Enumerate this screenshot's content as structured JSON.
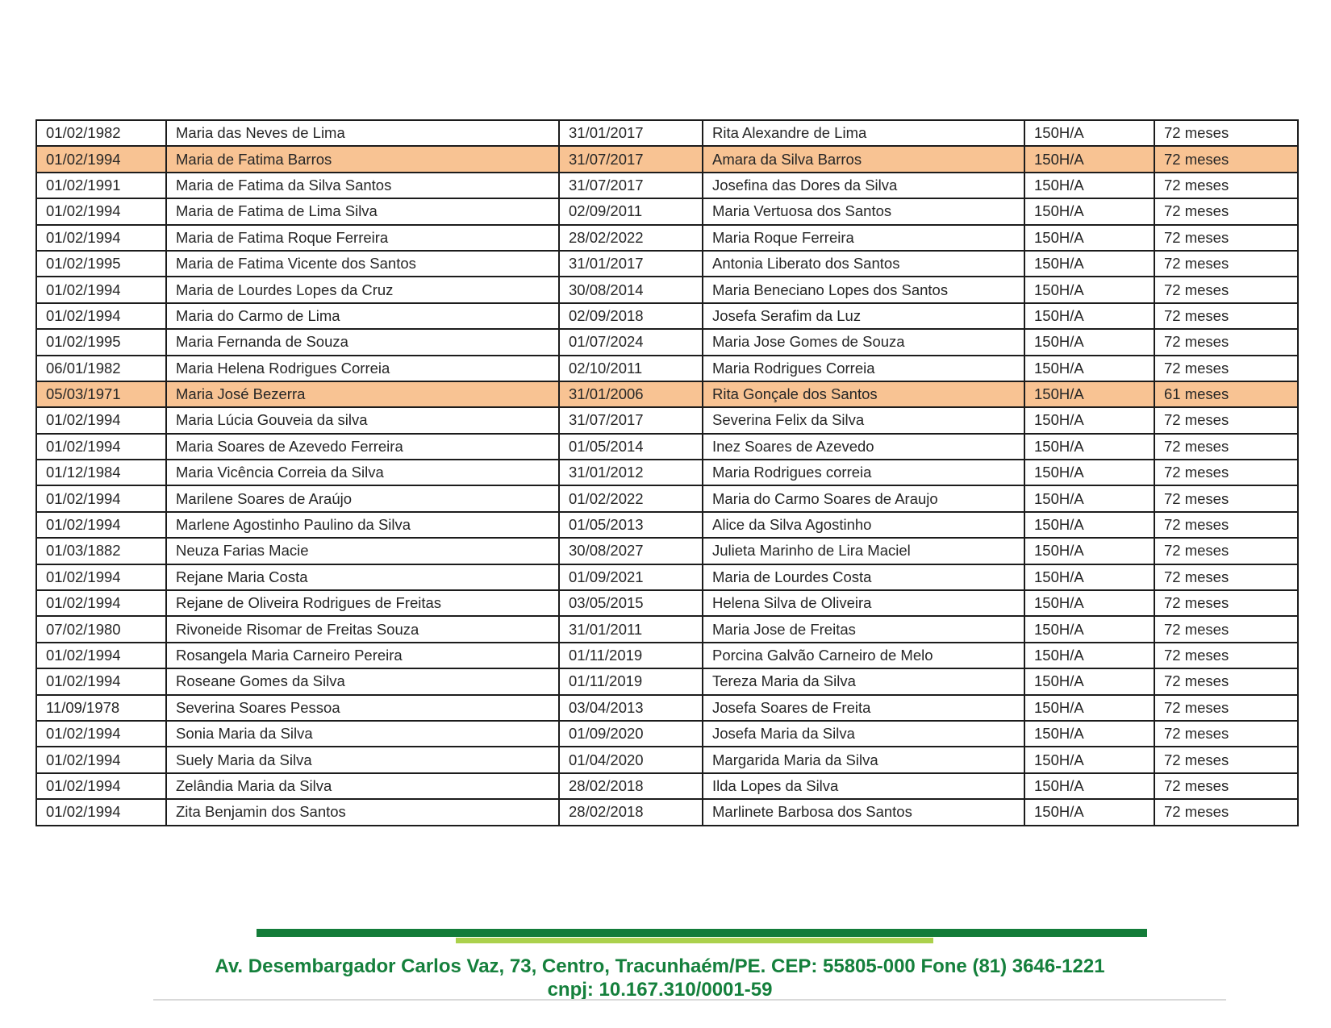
{
  "colors": {
    "highlight": "#f8c393",
    "table_border": "#1c1c1c",
    "table_text": "#262626",
    "footer_green": "#15803c",
    "bar_dark_green": "#137c39",
    "bar_light_green": "#abd14c",
    "divider_gray": "#d9d9d9"
  },
  "table": {
    "rows": [
      {
        "highlight": false,
        "cells": [
          "01/02/1982",
          "Maria das Neves de Lima",
          "31/01/2017",
          "Rita Alexandre de Lima",
          "150H/A",
          "72 meses"
        ]
      },
      {
        "highlight": true,
        "cells": [
          "01/02/1994",
          "Maria de Fatima Barros",
          "31/07/2017",
          "Amara da Silva Barros",
          "150H/A",
          "72 meses"
        ]
      },
      {
        "highlight": false,
        "cells": [
          "01/02/1991",
          "Maria de Fatima da Silva Santos",
          "31/07/2017",
          "Josefina das Dores da Silva",
          "150H/A",
          "72 meses"
        ]
      },
      {
        "highlight": false,
        "cells": [
          "01/02/1994",
          "Maria de Fatima de Lima Silva",
          "02/09/2011",
          "Maria Vertuosa dos Santos",
          "150H/A",
          "72 meses"
        ]
      },
      {
        "highlight": false,
        "cells": [
          "01/02/1994",
          "Maria de Fatima Roque Ferreira",
          "28/02/2022",
          "Maria Roque Ferreira",
          "150H/A",
          "72 meses"
        ]
      },
      {
        "highlight": false,
        "cells": [
          "01/02/1995",
          "Maria de Fatima Vicente dos Santos",
          "31/01/2017",
          "Antonia Liberato dos Santos",
          "150H/A",
          "72 meses"
        ]
      },
      {
        "highlight": false,
        "cells": [
          "01/02/1994",
          "Maria de Lourdes Lopes da Cruz",
          "30/08/2014",
          "Maria Beneciano Lopes dos Santos",
          "150H/A",
          "72 meses"
        ]
      },
      {
        "highlight": false,
        "cells": [
          "01/02/1994",
          "Maria do Carmo de Lima",
          "02/09/2018",
          "Josefa Serafim da Luz",
          "150H/A",
          "72 meses"
        ]
      },
      {
        "highlight": false,
        "cells": [
          "01/02/1995",
          "Maria Fernanda de Souza",
          "01/07/2024",
          "Maria Jose Gomes de Souza",
          "150H/A",
          "72 meses"
        ]
      },
      {
        "highlight": false,
        "cells": [
          "06/01/1982",
          "Maria Helena Rodrigues Correia",
          "02/10/2011",
          "Maria Rodrigues Correia",
          "150H/A",
          "72 meses"
        ]
      },
      {
        "highlight": true,
        "cells": [
          "05/03/1971",
          "Maria José Bezerra",
          "31/01/2006",
          "Rita Gonçale dos Santos",
          "150H/A",
          "61 meses"
        ]
      },
      {
        "highlight": false,
        "cells": [
          "01/02/1994",
          "Maria Lúcia Gouveia da silva",
          "31/07/2017",
          "Severina Felix da Silva",
          "150H/A",
          "72 meses"
        ]
      },
      {
        "highlight": false,
        "cells": [
          "01/02/1994",
          "Maria Soares de Azevedo Ferreira",
          "01/05/2014",
          "Inez Soares de Azevedo",
          "150H/A",
          "72 meses"
        ]
      },
      {
        "highlight": false,
        "cells": [
          "01/12/1984",
          "Maria Vicência Correia da Silva",
          "31/01/2012",
          "Maria Rodrigues correia",
          "150H/A",
          "72 meses"
        ]
      },
      {
        "highlight": false,
        "cells": [
          "01/02/1994",
          "Marilene Soares de Araújo",
          "01/02/2022",
          "Maria do Carmo Soares de Araujo",
          "150H/A",
          "72 meses"
        ]
      },
      {
        "highlight": false,
        "cells": [
          "01/02/1994",
          "Marlene Agostinho Paulino da Silva",
          "01/05/2013",
          "Alice da Silva Agostinho",
          "150H/A",
          "72 meses"
        ]
      },
      {
        "highlight": false,
        "cells": [
          "01/03/1882",
          "Neuza Farias Macie",
          "30/08/2027",
          "Julieta Marinho de Lira Maciel",
          "150H/A",
          "72 meses"
        ]
      },
      {
        "highlight": false,
        "cells": [
          "01/02/1994",
          "Rejane Maria Costa",
          "01/09/2021",
          "Maria de Lourdes Costa",
          "150H/A",
          "72 meses"
        ]
      },
      {
        "highlight": false,
        "cells": [
          "01/02/1994",
          "Rejane de Oliveira Rodrigues de Freitas",
          "03/05/2015",
          "Helena Silva de Oliveira",
          "150H/A",
          "72 meses"
        ]
      },
      {
        "highlight": false,
        "cells": [
          "07/02/1980",
          "Rivoneide Risomar de Freitas Souza",
          "31/01/2011",
          "Maria Jose de Freitas",
          "150H/A",
          "72 meses"
        ]
      },
      {
        "highlight": false,
        "cells": [
          "01/02/1994",
          "Rosangela Maria Carneiro Pereira",
          "01/11/2019",
          "Porcina Galvão Carneiro de Melo",
          "150H/A",
          "72 meses"
        ]
      },
      {
        "highlight": false,
        "cells": [
          "01/02/1994",
          "Roseane Gomes da Silva",
          "01/11/2019",
          "Tereza Maria da Silva",
          "150H/A",
          "72 meses"
        ]
      },
      {
        "highlight": false,
        "cells": [
          "11/09/1978",
          "Severina Soares Pessoa",
          "03/04/2013",
          "Josefa Soares de Freita",
          "150H/A",
          "72 meses"
        ]
      },
      {
        "highlight": false,
        "cells": [
          "01/02/1994",
          "Sonia Maria da Silva",
          "01/09/2020",
          "Josefa Maria da Silva",
          "150H/A",
          "72 meses"
        ]
      },
      {
        "highlight": false,
        "cells": [
          "01/02/1994",
          "Suely Maria da Silva",
          "01/04/2020",
          "Margarida Maria da Silva",
          "150H/A",
          "72 meses"
        ]
      },
      {
        "highlight": false,
        "cells": [
          "01/02/1994",
          "Zelândia Maria da Silva",
          "28/02/2018",
          "Ilda Lopes da Silva",
          "150H/A",
          "72 meses"
        ]
      },
      {
        "highlight": false,
        "cells": [
          "01/02/1994",
          "Zita Benjamin dos Santos",
          "28/02/2018",
          "Marlinete Barbosa dos Santos",
          "150H/A",
          "72 meses"
        ]
      }
    ]
  },
  "footer": {
    "address_line": "Av. Desembargador Carlos Vaz, 73, Centro, Tracunhaém/PE. CEP: 55805-000 Fone (81) 3646-1221",
    "cnpj_line": "cnpj: 10.167.310/0001-59"
  }
}
